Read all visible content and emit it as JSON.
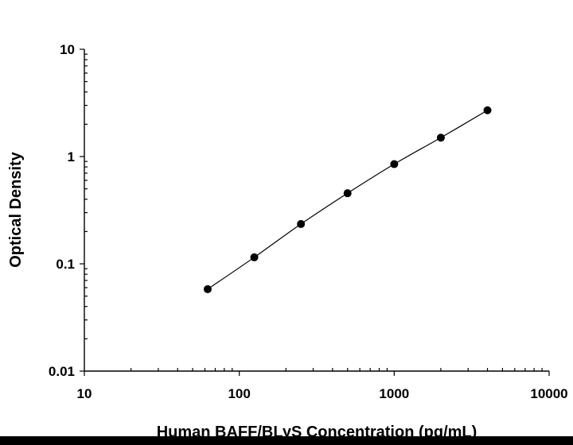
{
  "chart_data": {
    "type": "scatter",
    "xlabel": "Human BAFF/BLyS Concentration (pg/mL)",
    "ylabel": "Optical Density",
    "xscale": "log",
    "yscale": "log",
    "xlim": [
      10,
      10000
    ],
    "ylim": [
      0.01,
      10
    ],
    "xticks": [
      "10",
      "100",
      "1000",
      "10000"
    ],
    "yticks": [
      "0.01",
      "0.1",
      "1",
      "10"
    ],
    "grid": false,
    "legend": "none",
    "series": [
      {
        "x": [
          62.5,
          125,
          250,
          500,
          1000,
          2000,
          4000
        ],
        "y": [
          0.058,
          0.115,
          0.235,
          0.455,
          0.85,
          1.5,
          2.7
        ]
      }
    ],
    "curve": "smooth fit line through points",
    "colors": {
      "point": "#000000",
      "line": "#000000"
    }
  }
}
